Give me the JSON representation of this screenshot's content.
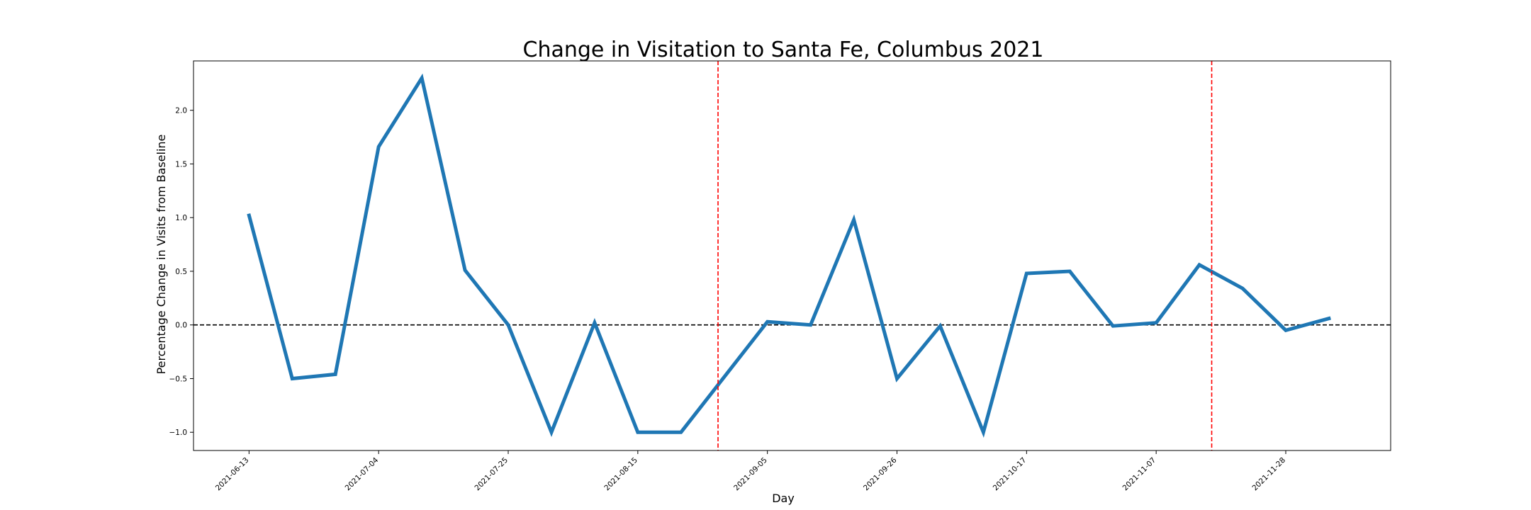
{
  "chart_data": {
    "type": "line",
    "title": "Change in Visitation to Santa Fe, Columbus 2021",
    "xlabel": "Day",
    "ylabel": "Percentage Change in Visits from Baseline",
    "x": [
      "2021-06-13",
      "2021-06-20",
      "2021-06-27",
      "2021-07-04",
      "2021-07-11",
      "2021-07-18",
      "2021-07-25",
      "2021-08-01",
      "2021-08-08",
      "2021-08-15",
      "2021-08-22",
      "2021-08-29",
      "2021-09-05",
      "2021-09-12",
      "2021-09-19",
      "2021-09-26",
      "2021-10-03",
      "2021-10-10",
      "2021-10-17",
      "2021-10-24",
      "2021-10-31",
      "2021-11-07",
      "2021-11-14",
      "2021-11-21",
      "2021-11-28",
      "2021-12-05"
    ],
    "xticks": [
      "2021-06-13",
      "2021-07-04",
      "2021-07-25",
      "2021-08-15",
      "2021-09-05",
      "2021-09-26",
      "2021-10-17",
      "2021-11-07",
      "2021-11-28"
    ],
    "series": [
      {
        "values": [
          1.02,
          -0.5,
          -0.46,
          1.66,
          2.3,
          0.51,
          0.0,
          -1.0,
          0.02,
          -1.0,
          -1.0,
          null,
          0.03,
          0.0,
          0.98,
          -0.5,
          -0.01,
          -1.0,
          0.48,
          0.5,
          -0.01,
          0.02,
          0.56,
          0.34,
          -0.05,
          0.06
        ],
        "color": "#1f77b4"
      }
    ],
    "yticks": [
      -1.0,
      -0.5,
      0.0,
      0.5,
      1.0,
      1.5,
      2.0
    ],
    "ylim": [
      -1.17,
      2.46
    ],
    "xlim": [
      "2021-06-04",
      "2021-12-15"
    ],
    "hlines": [
      {
        "y": 0.0,
        "color": "#000000",
        "style": "dashed"
      }
    ],
    "vlines": [
      {
        "x": "2021-08-28",
        "color": "#ff0000",
        "style": "dashed"
      },
      {
        "x": "2021-11-16",
        "color": "#ff0000",
        "style": "dashed"
      }
    ],
    "grid": false,
    "legend": "none"
  }
}
